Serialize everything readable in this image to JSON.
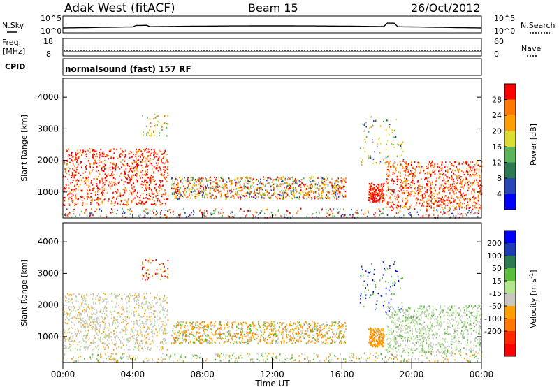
{
  "header": {
    "title": "Adak West (fitACF)",
    "beam": "Beam 15",
    "date": "26/Oct/2012"
  },
  "panels": {
    "nsky": {
      "left_label": "N.Sky",
      "right_label": "N.Search",
      "left_ticks": [
        "10^5",
        "10^0"
      ],
      "right_ticks": [
        "10^5",
        "10^0"
      ]
    },
    "freq": {
      "left_label_1": "Freq.",
      "left_label_2": "[MHz]",
      "right_label": "Nave",
      "left_ticks": [
        "18",
        "8"
      ],
      "right_ticks": [
        "60",
        "0"
      ]
    },
    "cpid": {
      "label": "CPID",
      "text": "normalsound (fast) 157 RF"
    }
  },
  "chart_data": [
    {
      "type": "heatmap",
      "name": "power",
      "ylabel": "Slant Range [km]",
      "xlabel": "Time UT",
      "yticks": [
        1000,
        2000,
        3000,
        4000
      ],
      "ylim": [
        180,
        4600
      ],
      "xticks": [
        "00:00",
        "04:00",
        "08:00",
        "12:00",
        "16:00",
        "20:00",
        "00:00"
      ],
      "xlim_hours": [
        0,
        24
      ],
      "colorbar": {
        "label": "Power [dB]",
        "ticks": [
          "28",
          "24",
          "20",
          "16",
          "12",
          "8",
          "4"
        ],
        "colors": [
          "#ff0000",
          "#ff7800",
          "#ffa000",
          "#dcdc32",
          "#5ab45a",
          "#2d7a50",
          "#2846b4",
          "#0000ff"
        ]
      }
    },
    {
      "type": "heatmap",
      "name": "velocity",
      "ylabel": "Slant Range [km]",
      "xlabel": "Time UT",
      "yticks": [
        1000,
        2000,
        3000,
        4000
      ],
      "ylim": [
        180,
        4600
      ],
      "xticks": [
        "00:00",
        "04:00",
        "08:00",
        "12:00",
        "16:00",
        "20:00",
        "00:00"
      ],
      "xlim_hours": [
        0,
        24
      ],
      "colorbar": {
        "label": "Velocity [m s",
        "label_exp": "-1",
        "label_end": "]",
        "ticks": [
          "200",
          "100",
          "50",
          "15",
          "-15",
          "-50",
          "-100",
          "-200"
        ],
        "colors": [
          "#0000ff",
          "#1e3cb4",
          "#2d7a50",
          "#5abe3c",
          "#b4e68c",
          "#c8c8c0",
          "#ffa000",
          "#ff7800",
          "#ff2800",
          "#ff0000"
        ]
      }
    }
  ]
}
